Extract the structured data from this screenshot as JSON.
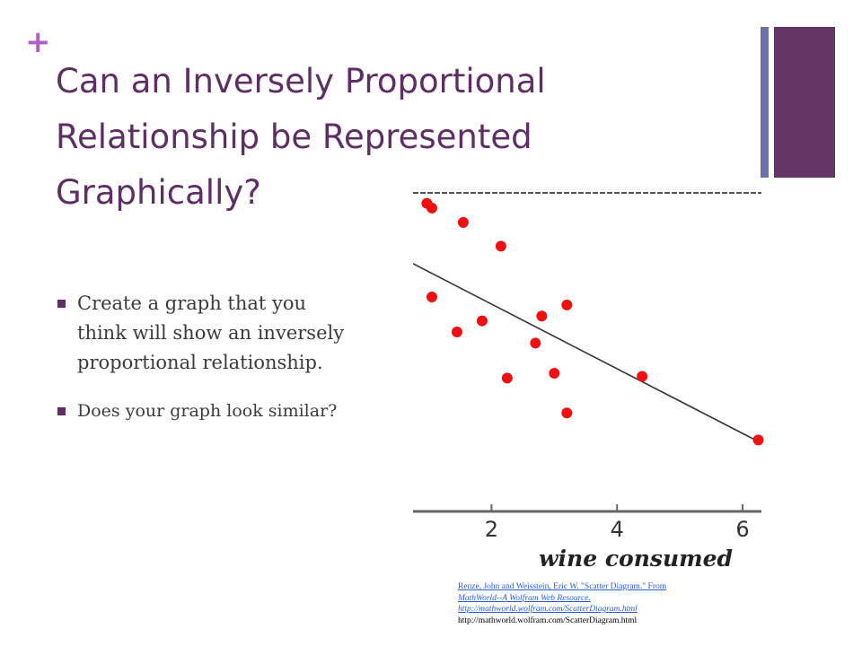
{
  "slide": {
    "plus_symbol": "+",
    "title_lines": [
      "Can an Inversely Proportional",
      "Relationship be Represented",
      "Graphically?"
    ],
    "bullets": [
      {
        "lines": [
          "Create a graph that you",
          "think will show an inversely",
          "proportional relationship."
        ]
      },
      {
        "lines": [
          "Does your graph look similar?"
        ]
      }
    ],
    "colors": {
      "accent": "#b15fc0",
      "title": "#5e2e64",
      "bar_thin": "#6c71a8",
      "bar_thick": "#643567",
      "dots": "#ee1111"
    }
  },
  "citation": {
    "link_lines": [
      "Renze, John and Weisstein, Eric W. \"Scatter Diagram.\" From",
      "MathWorld--A Wolfram Web Resource.",
      "http://mathworld.wolfram.com/ScatterDiagram.html"
    ],
    "plain_line": "http://mathworld.wolfram.com/ScatterDiagram.html"
  },
  "chart_data": {
    "type": "scatter",
    "title": "",
    "xlabel": "wine consumed",
    "ylabel": "",
    "xlim": [
      0.75,
      6.3
    ],
    "ylim": [
      0,
      1
    ],
    "x_ticks": [
      2,
      4,
      6
    ],
    "x_tick_labels": [
      "2",
      "4",
      "6"
    ],
    "grid": false,
    "points": [
      {
        "x": 0.97,
        "y": 0.97
      },
      {
        "x": 1.05,
        "y": 0.955
      },
      {
        "x": 1.55,
        "y": 0.91
      },
      {
        "x": 2.15,
        "y": 0.835
      },
      {
        "x": 1.05,
        "y": 0.675
      },
      {
        "x": 1.45,
        "y": 0.565
      },
      {
        "x": 1.85,
        "y": 0.6
      },
      {
        "x": 2.25,
        "y": 0.42
      },
      {
        "x": 2.7,
        "y": 0.53
      },
      {
        "x": 2.8,
        "y": 0.615
      },
      {
        "x": 3.2,
        "y": 0.65
      },
      {
        "x": 3.0,
        "y": 0.435
      },
      {
        "x": 3.2,
        "y": 0.31
      },
      {
        "x": 4.4,
        "y": 0.425
      },
      {
        "x": 6.25,
        "y": 0.225
      }
    ],
    "trend_line": {
      "x": [
        0.75,
        6.3
      ],
      "y": [
        0.78,
        0.215
      ]
    }
  }
}
